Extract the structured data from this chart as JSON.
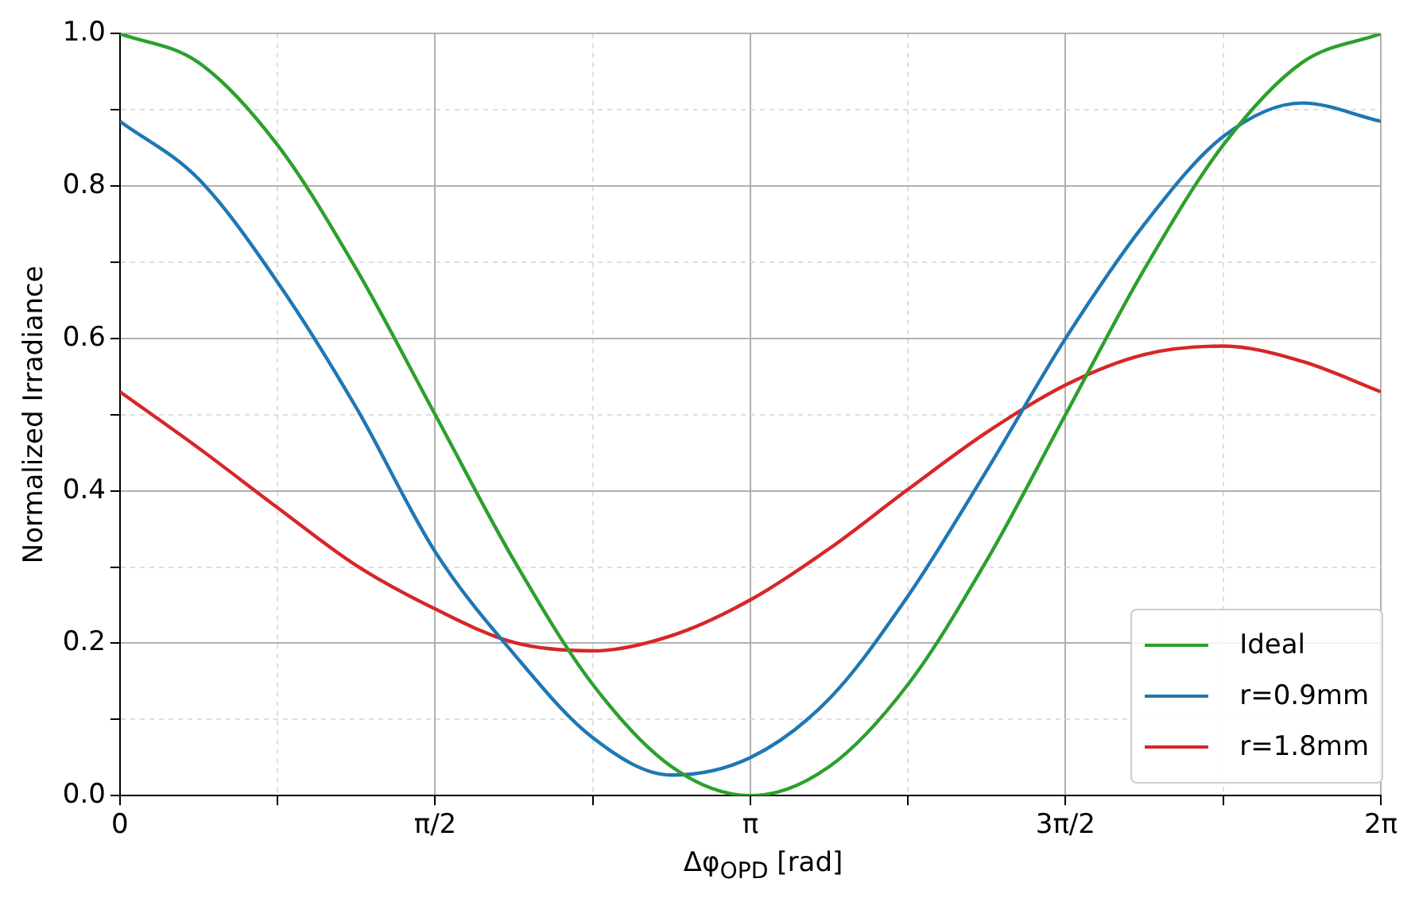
{
  "chart_data": {
    "type": "line",
    "xlabel": "Δφ$_{OPD}$ [rad]",
    "ylabel": "Normalized Irradiance",
    "x": [
      0,
      0.393,
      0.785,
      1.178,
      1.571,
      1.963,
      2.356,
      2.749,
      3.142,
      3.534,
      3.927,
      4.32,
      4.712,
      5.105,
      5.498,
      5.89,
      6.283
    ],
    "series": [
      {
        "name": "Ideal",
        "color": "#2ca02c",
        "values": [
          1,
          0.962,
          0.854,
          0.691,
          0.5,
          0.309,
          0.146,
          0.038,
          0,
          0.038,
          0.146,
          0.309,
          0.5,
          0.691,
          0.854,
          0.962,
          1
        ]
      },
      {
        "name": "r=0.9mm",
        "color": "#1f77b4",
        "values": [
          0.885,
          0.809,
          0.674,
          0.509,
          0.32,
          0.186,
          0.076,
          0.027,
          0.05,
          0.127,
          0.262,
          0.427,
          0.6,
          0.75,
          0.865,
          0.909,
          0.885
        ]
      },
      {
        "name": "r=1.8mm",
        "color": "#d62728",
        "values": [
          0.53,
          0.456,
          0.378,
          0.302,
          0.245,
          0.201,
          0.19,
          0.21,
          0.257,
          0.324,
          0.402,
          0.477,
          0.539,
          0.579,
          0.59,
          0.57,
          0.53
        ]
      }
    ],
    "xlim": [
      0,
      6.283
    ],
    "xticks": [
      {
        "value": 0,
        "label": "0"
      },
      {
        "value": 0.785,
        "label": null
      },
      {
        "value": 1.571,
        "label": "π/2"
      },
      {
        "value": 2.356,
        "label": null
      },
      {
        "value": 3.142,
        "label": "π"
      },
      {
        "value": 3.927,
        "label": null
      },
      {
        "value": 4.712,
        "label": "3π/2"
      },
      {
        "value": 5.498,
        "label": null
      },
      {
        "value": 6.283,
        "label": "2π"
      }
    ],
    "ylim": [
      0,
      1
    ],
    "yticks": [
      {
        "value": 0,
        "label": "0.0"
      },
      {
        "value": 0.1,
        "label": null
      },
      {
        "value": 0.2,
        "label": "0.2"
      },
      {
        "value": 0.3,
        "label": null
      },
      {
        "value": 0.4,
        "label": "0.4"
      },
      {
        "value": 0.5,
        "label": null
      },
      {
        "value": 0.6,
        "label": "0.6"
      },
      {
        "value": 0.7,
        "label": null
      },
      {
        "value": 0.8,
        "label": "0.8"
      },
      {
        "value": 0.9,
        "label": null
      },
      {
        "value": 1,
        "label": "1.0"
      }
    ],
    "grid": true,
    "legend": "bottom right",
    "marker": "none",
    "line_style": "solid"
  }
}
